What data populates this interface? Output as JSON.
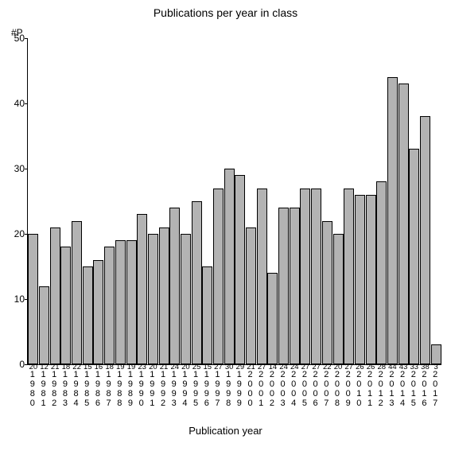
{
  "chart": {
    "type": "bar",
    "title": "Publications per year in class",
    "title_fontsize": 14,
    "title_color": "#000000",
    "ylabel_short": "#P",
    "xlabel": "Publication year",
    "label_fontsize": 13,
    "background_color": "#ffffff",
    "bar_fill": "#b3b3b3",
    "bar_border": "#000000",
    "axis_color": "#000000",
    "ylim": [
      0,
      50
    ],
    "yticks": [
      0,
      10,
      20,
      30,
      40,
      50
    ],
    "categories": [
      "1980",
      "1981",
      "1982",
      "1983",
      "1984",
      "1985",
      "1986",
      "1987",
      "1988",
      "1989",
      "1990",
      "1991",
      "1992",
      "1993",
      "1994",
      "1995",
      "1996",
      "1997",
      "1998",
      "1999",
      "2000",
      "2001",
      "2002",
      "2003",
      "2004",
      "2005",
      "2006",
      "2007",
      "2008",
      "2009",
      "2010",
      "2011",
      "2012",
      "2013",
      "2014",
      "2015",
      "2016",
      "2017"
    ],
    "values": [
      20,
      12,
      21,
      18,
      22,
      15,
      16,
      18,
      19,
      19,
      23,
      20,
      21,
      24,
      20,
      25,
      15,
      27,
      30,
      29,
      21,
      27,
      14,
      24,
      24,
      27,
      27,
      22,
      20,
      27,
      26,
      26,
      28,
      44,
      43,
      33,
      38,
      3
    ],
    "bar_width_ratio": 0.95,
    "tick_fontsize": 12
  }
}
